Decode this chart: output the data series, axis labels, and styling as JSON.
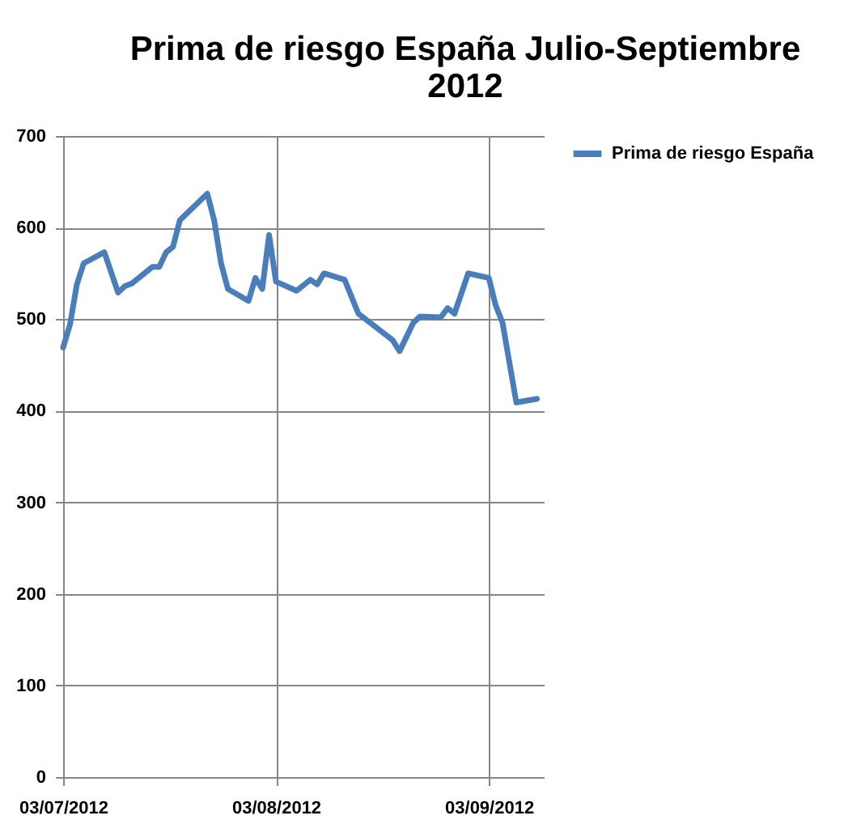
{
  "chart_data": {
    "type": "line",
    "title": "Prima de riesgo España Julio-Septiembre 2012",
    "x": [
      "2012-07-03",
      "2012-07-04",
      "2012-07-05",
      "2012-07-06",
      "2012-07-09",
      "2012-07-11",
      "2012-07-12",
      "2012-07-13",
      "2012-07-16",
      "2012-07-17",
      "2012-07-18",
      "2012-07-19",
      "2012-07-20",
      "2012-07-24",
      "2012-07-25",
      "2012-07-26",
      "2012-07-27",
      "2012-07-30",
      "2012-07-31",
      "2012-08-01",
      "2012-08-02",
      "2012-08-03",
      "2012-08-06",
      "2012-08-08",
      "2012-08-09",
      "2012-08-10",
      "2012-08-13",
      "2012-08-15",
      "2012-08-20",
      "2012-08-21",
      "2012-08-23",
      "2012-08-24",
      "2012-08-27",
      "2012-08-28",
      "2012-08-29",
      "2012-08-31",
      "2012-09-03",
      "2012-09-04",
      "2012-09-05",
      "2012-09-07",
      "2012-09-10"
    ],
    "series": [
      {
        "name": "Prima de riesgo España",
        "color": "#4a7ebb",
        "values": [
          469,
          494,
          538,
          561,
          573,
          529,
          536,
          539,
          557,
          557,
          573,
          579,
          608,
          637,
          608,
          561,
          533,
          520,
          545,
          533,
          592,
          541,
          531,
          543,
          538,
          550,
          543,
          506,
          477,
          465,
          496,
          503,
          502,
          512,
          506,
          550,
          545,
          515,
          496,
          409,
          413
        ]
      }
    ],
    "xlim": [
      "2012-07-03",
      "2012-09-11"
    ],
    "xticks": [
      {
        "value": "2012-07-03",
        "label": "03/07/2012"
      },
      {
        "value": "2012-08-03",
        "label": "03/08/2012"
      },
      {
        "value": "2012-09-03",
        "label": "03/09/2012"
      }
    ],
    "ylim": [
      0,
      700
    ],
    "yticks": [
      0,
      100,
      200,
      300,
      400,
      500,
      600,
      700
    ],
    "grid": true,
    "legend": "right",
    "marker": "none",
    "line_style": "solid"
  }
}
